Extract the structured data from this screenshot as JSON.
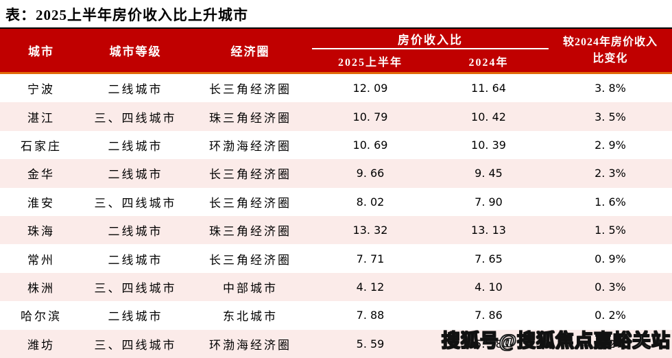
{
  "page": {
    "title": "表：2025上半年房价收入比上升城市"
  },
  "table": {
    "header": {
      "city": "城市",
      "tier": "城市等级",
      "region": "经济圈",
      "group": "房价收入比",
      "sub_2025": "2025上半年",
      "sub_2024": "2024年",
      "change_line1": "较2024年房价收入",
      "change_line2": "比变化",
      "change_full": "较2024年房价收入比变化"
    },
    "rows": [
      {
        "city": "宁波",
        "tier": "二线城市",
        "region": "长三角经济圈",
        "hpir_2025": "12. 09",
        "hpir_2024": "11. 64",
        "change": "3. 8%"
      },
      {
        "city": "湛江",
        "tier": "三、四线城市",
        "region": "珠三角经济圈",
        "hpir_2025": "10. 79",
        "hpir_2024": "10. 42",
        "change": "3. 5%"
      },
      {
        "city": "石家庄",
        "tier": "二线城市",
        "region": "环渤海经济圈",
        "hpir_2025": "10. 69",
        "hpir_2024": "10. 39",
        "change": "2. 9%"
      },
      {
        "city": "金华",
        "tier": "二线城市",
        "region": "长三角经济圈",
        "hpir_2025": "9. 66",
        "hpir_2024": "9. 45",
        "change": "2. 3%"
      },
      {
        "city": "淮安",
        "tier": "三、四线城市",
        "region": "长三角经济圈",
        "hpir_2025": "8. 02",
        "hpir_2024": "7. 90",
        "change": "1. 6%"
      },
      {
        "city": "珠海",
        "tier": "二线城市",
        "region": "珠三角经济圈",
        "hpir_2025": "13. 32",
        "hpir_2024": "13. 13",
        "change": "1. 5%"
      },
      {
        "city": "常州",
        "tier": "二线城市",
        "region": "长三角经济圈",
        "hpir_2025": "7. 71",
        "hpir_2024": "7. 65",
        "change": "0. 9%"
      },
      {
        "city": "株洲",
        "tier": "三、四线城市",
        "region": "中部城市",
        "hpir_2025": "4. 12",
        "hpir_2024": "4. 10",
        "change": "0. 3%"
      },
      {
        "city": "哈尔滨",
        "tier": "二线城市",
        "region": "东北城市",
        "hpir_2025": "7. 88",
        "hpir_2024": "7. 86",
        "change": "0. 2%"
      },
      {
        "city": "潍坊",
        "tier": "三、四线城市",
        "region": "环渤海经济圈",
        "hpir_2025": "5. 59",
        "hpir_2024": "5. 58",
        "change": "0. 2%"
      }
    ]
  },
  "watermark": {
    "text": "搜狐号@搜狐焦点嘉峪关站"
  },
  "colors": {
    "header_bg": "#C00000",
    "header_text": "#FFFFFF",
    "accent_rule_orange": "#E26B0A",
    "header_top_rule": "#000000",
    "row_alt_bg": "#FBEBE9",
    "body_text": "#000000"
  },
  "chart_data": {
    "type": "table",
    "title": "表：2025上半年房价收入比上升城市",
    "columns": [
      "城市",
      "城市等级",
      "经济圈",
      "房价收入比 2025上半年",
      "房价收入比 2024年",
      "较2024年房价收入比变化"
    ],
    "rows": [
      [
        "宁波",
        "二线城市",
        "长三角经济圈",
        12.09,
        11.64,
        "3.8%"
      ],
      [
        "湛江",
        "三、四线城市",
        "珠三角经济圈",
        10.79,
        10.42,
        "3.5%"
      ],
      [
        "石家庄",
        "二线城市",
        "环渤海经济圈",
        10.69,
        10.39,
        "2.9%"
      ],
      [
        "金华",
        "二线城市",
        "长三角经济圈",
        9.66,
        9.45,
        "2.3%"
      ],
      [
        "淮安",
        "三、四线城市",
        "长三角经济圈",
        8.02,
        7.9,
        "1.6%"
      ],
      [
        "珠海",
        "二线城市",
        "珠三角经济圈",
        13.32,
        13.13,
        "1.5%"
      ],
      [
        "常州",
        "二线城市",
        "长三角经济圈",
        7.71,
        7.65,
        "0.9%"
      ],
      [
        "株洲",
        "三、四线城市",
        "中部城市",
        4.12,
        4.1,
        "0.3%"
      ],
      [
        "哈尔滨",
        "二线城市",
        "东北城市",
        7.88,
        7.86,
        "0.2%"
      ],
      [
        "潍坊",
        "三、四线城市",
        "环渤海经济圈",
        5.59,
        5.58,
        "0.2%"
      ]
    ]
  }
}
